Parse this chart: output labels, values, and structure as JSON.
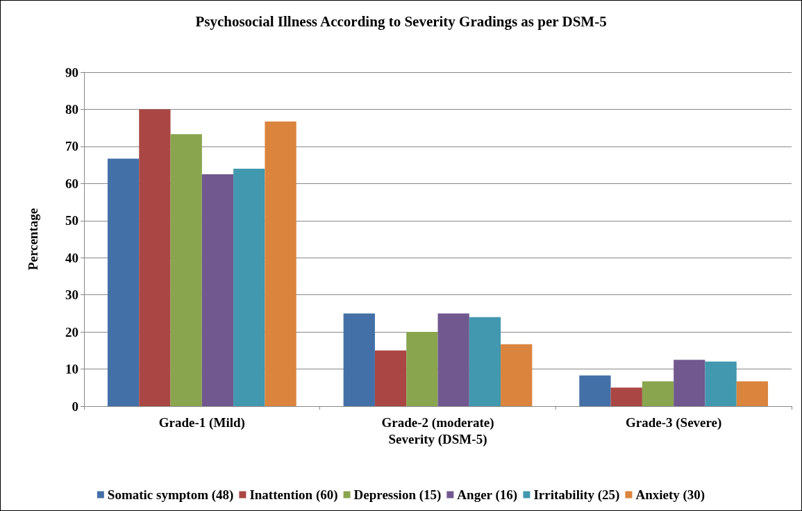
{
  "chart_data": {
    "type": "bar",
    "title": "Psychosocial Illness According to Severity Gradings as per DSM-5",
    "xlabel": "Severity (DSM-5)",
    "ylabel": "Percentage",
    "categories": [
      "Grade-1 (Mild)",
      "Grade-2 (moderate)",
      "Grade-3 (Severe)"
    ],
    "series": [
      {
        "name": "Somatic symptom (48)",
        "color": "#4470a8",
        "values": [
          66.7,
          25,
          8.3
        ]
      },
      {
        "name": "Inattention (60)",
        "color": "#aa4643",
        "values": [
          80,
          15,
          5
        ]
      },
      {
        "name": "Depression (15)",
        "color": "#89a54e",
        "values": [
          73.3,
          20,
          6.7
        ]
      },
      {
        "name": "Anger (16)",
        "color": "#71588f",
        "values": [
          62.5,
          25,
          12.5
        ]
      },
      {
        "name": "Irritability (25)",
        "color": "#4198af",
        "values": [
          64,
          24,
          12
        ]
      },
      {
        "name": "Anxiety (30)",
        "color": "#db843d",
        "values": [
          76.7,
          16.7,
          6.7
        ]
      }
    ],
    "ylim": [
      0,
      90
    ],
    "yticks": [
      0,
      10,
      20,
      30,
      40,
      50,
      60,
      70,
      80,
      90
    ],
    "grid": "y",
    "legend": "bottom"
  }
}
